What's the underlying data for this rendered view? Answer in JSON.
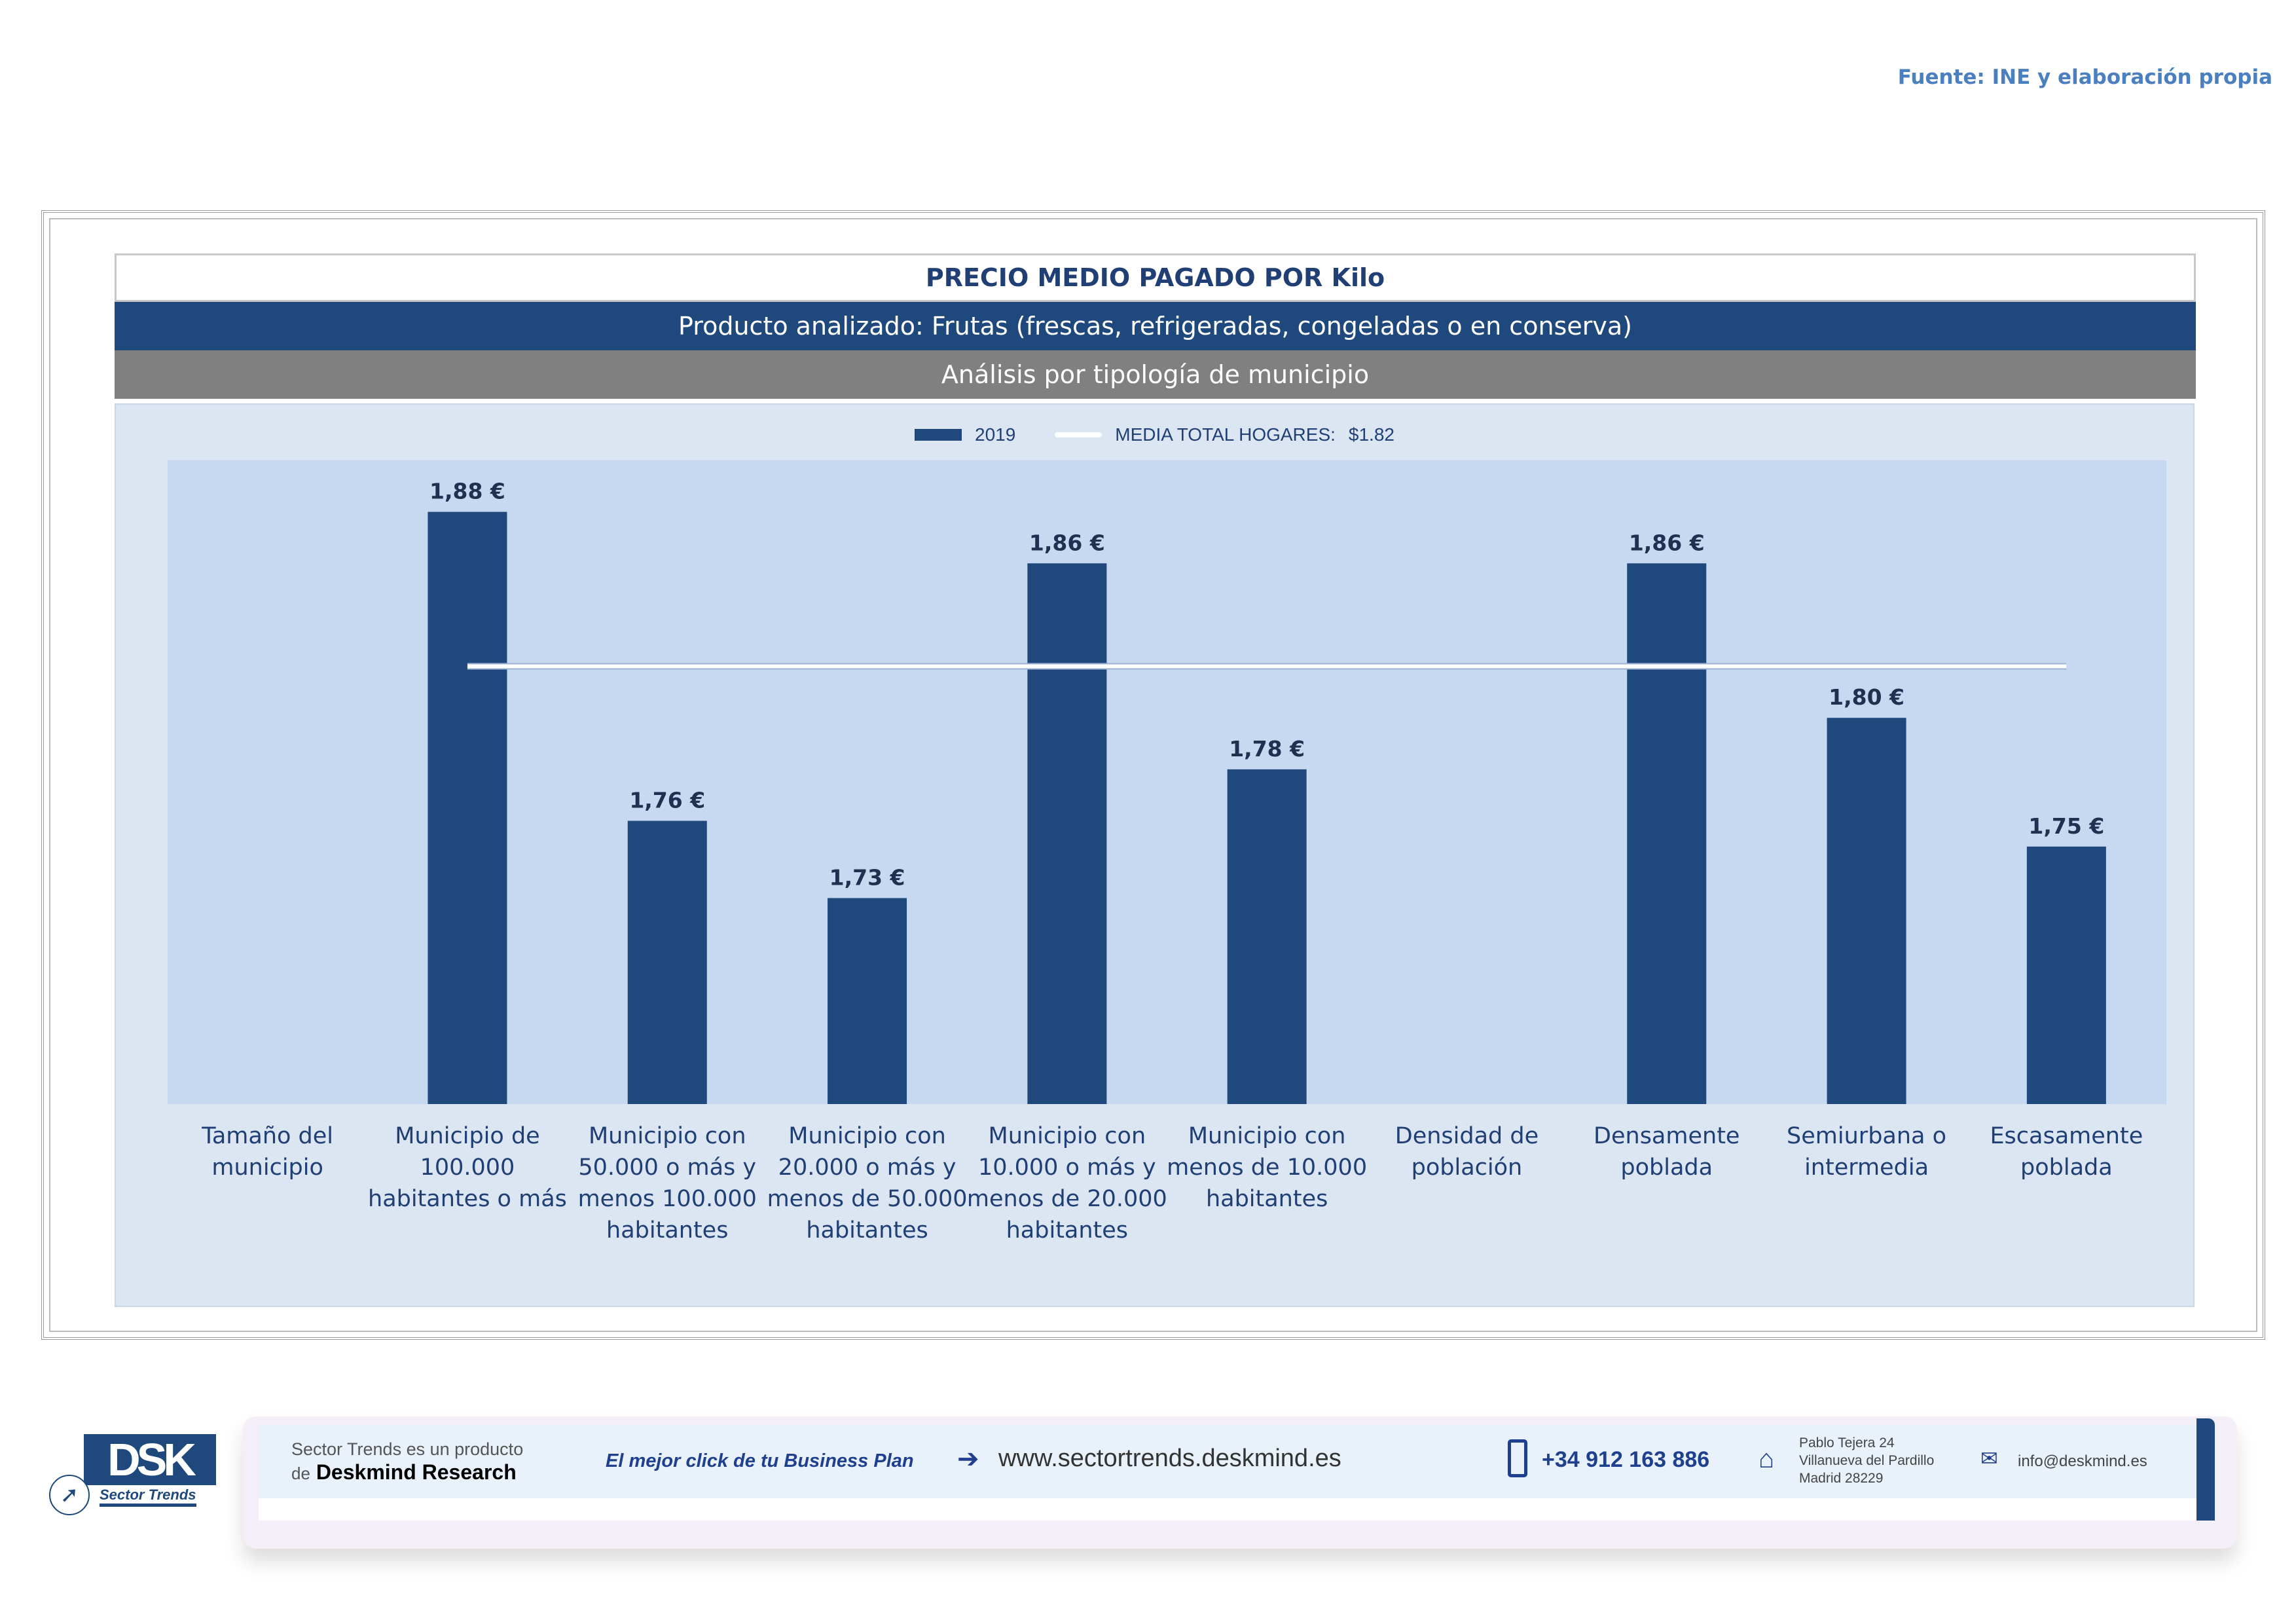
{
  "source": "Fuente: INE y elaboración propia",
  "header": {
    "title": "PRECIO MEDIO PAGADO POR Kilo",
    "product": "Producto analizado: Frutas (frescas, refrigeradas, congeladas o en conserva)",
    "analysis": "Análisis por tipología de municipio"
  },
  "chart_data": {
    "type": "bar",
    "title": "PRECIO MEDIO PAGADO POR Kilo",
    "categories": [
      [
        "Tamaño del",
        "municipio"
      ],
      [
        "Municipio de",
        "100.000",
        "habitantes o más"
      ],
      [
        "Municipio con",
        "50.000 o más y",
        "menos 100.000",
        "habitantes"
      ],
      [
        "Municipio con",
        "20.000 o más y",
        "menos de 50.000",
        "habitantes"
      ],
      [
        "Municipio con",
        "10.000 o más y",
        "menos de 20.000",
        "habitantes"
      ],
      [
        "Municipio con",
        "menos de 10.000",
        "habitantes"
      ],
      [
        "Densidad de",
        "población"
      ],
      [
        "Densamente",
        "poblada"
      ],
      [
        "Semiurbana o",
        "intermedia"
      ],
      [
        "Escasamente",
        "poblada"
      ]
    ],
    "series": [
      {
        "name": "2019",
        "values": [
          null,
          1.88,
          1.76,
          1.73,
          1.86,
          1.78,
          null,
          1.86,
          1.8,
          1.75
        ],
        "labels": [
          "",
          "1,88 €",
          "1,76 €",
          "1,73 €",
          "1,86 €",
          "1,78 €",
          "",
          "1,86 €",
          "1,80 €",
          "1,75 €"
        ],
        "color": "#1f497d"
      }
    ],
    "reference_line": {
      "name": "MEDIA TOTAL  HOGARES:",
      "value": 1.82,
      "label": "$1.82",
      "color": "#ffffff"
    },
    "ylim": [
      1.65,
      1.9
    ],
    "legend": "top-center",
    "grid": false
  },
  "footer": {
    "logo": "DSK Sector Trends",
    "tagline_1": "Sector Trends es un producto",
    "tagline_2_prefix": "de",
    "tagline_2_brand": "Deskmind Research",
    "slogan": "El mejor click de tu Business Plan",
    "website": "www.sectortrends.deskmind.es",
    "phone": "+34 912 163 886",
    "address": [
      "Pablo Tejera 24",
      "Villanueva del Pardillo",
      "Madrid 28229"
    ],
    "email": "info@deskmind.es"
  }
}
